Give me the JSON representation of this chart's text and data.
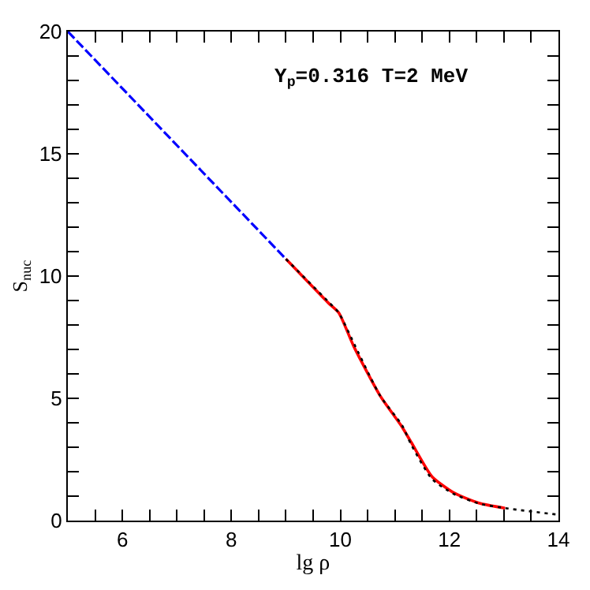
{
  "chart_data": {
    "type": "line",
    "xlabel": "lg ρ",
    "ylabel": "S$_{nuc}$",
    "annotations": [
      "Y$_{p}$=0.316 T=2 MeV"
    ],
    "xlim": [
      5,
      14
    ],
    "ylim": [
      0,
      20
    ],
    "xticks": [
      {
        "value": 5.5,
        "label": null
      },
      6,
      {
        "value": 6.5,
        "label": null
      },
      {
        "value": 7,
        "label": null
      },
      {
        "value": 7.5,
        "label": null
      },
      8,
      {
        "value": 8.5,
        "label": null
      },
      {
        "value": 9,
        "label": null
      },
      {
        "value": 9.5,
        "label": null
      },
      10,
      {
        "value": 10.5,
        "label": null
      },
      {
        "value": 11,
        "label": null
      },
      {
        "value": 11.5,
        "label": null
      },
      12,
      {
        "value": 12.5,
        "label": null
      },
      {
        "value": 13,
        "label": null
      },
      {
        "value": 13.5,
        "label": null
      },
      14
    ],
    "yticks": [
      0,
      {
        "value": 1,
        "label": null
      },
      {
        "value": 2,
        "label": null
      },
      {
        "value": 3,
        "label": null
      },
      {
        "value": 4,
        "label": null
      },
      5,
      {
        "value": 6,
        "label": null
      },
      {
        "value": 7,
        "label": null
      },
      {
        "value": 8,
        "label": null
      },
      {
        "value": 9,
        "label": null
      },
      10,
      {
        "value": 11,
        "label": null
      },
      {
        "value": 12,
        "label": null
      },
      {
        "value": 13,
        "label": null
      },
      {
        "value": 14,
        "label": null
      },
      15,
      {
        "value": 16,
        "label": null
      },
      {
        "value": 17,
        "label": null
      },
      {
        "value": 18,
        "label": null
      },
      {
        "value": 19,
        "label": null
      },
      20
    ],
    "series": [
      {
        "color": "#0000ff",
        "line_style": "dashed",
        "x": [
          5,
          9
        ],
        "values": [
          20,
          10.7
        ]
      },
      {
        "color": "#ff0000",
        "line_style": "solid",
        "x": [
          9,
          9.78,
          9.97,
          10.25,
          10.73,
          11.11,
          11.3,
          11.68,
          12.07,
          12.54,
          13.02
        ],
        "values": [
          10.7,
          8.9,
          8.5,
          7.1,
          5.1,
          3.9,
          3.2,
          1.8,
          1.15,
          0.72,
          0.51
        ]
      },
      {
        "color": "#000000",
        "line_style": "dotted",
        "x": [
          9,
          9.78,
          9.97,
          10.28,
          10.73,
          11.13,
          11.3,
          11.68,
          12.07,
          12.54,
          13.02,
          14
        ],
        "values": [
          10.7,
          8.95,
          8.5,
          7.1,
          5.1,
          3.9,
          3.1,
          1.7,
          1.1,
          0.7,
          0.51,
          0.24
        ]
      }
    ]
  }
}
